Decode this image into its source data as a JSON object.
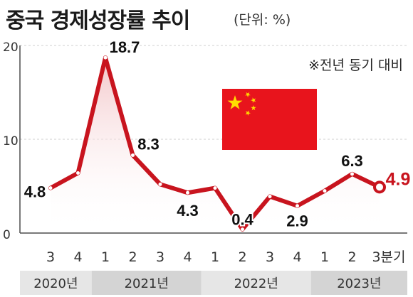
{
  "header": {
    "title": "중국 경제성장률 추이",
    "unit": "(단위: %)"
  },
  "note": "※전년 동기 대비",
  "colors": {
    "line": "#c8141e",
    "fill_top": "#f3c6c9",
    "flag_red": "#e8141c",
    "flag_star": "#ffde00",
    "highlight": "#c8141e",
    "band_light": "#e6e6e6",
    "band_dark": "#d4d4d4",
    "axis": "#4d4d4d",
    "grid": "#cfcfcf"
  },
  "flag_icon": "china-flag",
  "chart_data": {
    "type": "area",
    "title": "중국 경제성장률 추이",
    "ylabel": "",
    "xlabel": "",
    "ylim": [
      0,
      20
    ],
    "yticks": [
      0,
      10,
      20
    ],
    "grid": "y-major dashed",
    "categories": [
      "3",
      "4",
      "1",
      "2",
      "3",
      "4",
      "1",
      "2",
      "3",
      "4",
      "1",
      "2",
      "3분기"
    ],
    "year_groups": [
      {
        "label": "2020년",
        "span": 2
      },
      {
        "label": "2021년",
        "span": 4
      },
      {
        "label": "2022년",
        "span": 4
      },
      {
        "label": "2023년",
        "span": 3
      }
    ],
    "series": [
      {
        "values": [
          4.8,
          6.4,
          18.7,
          8.3,
          5.2,
          4.3,
          4.8,
          0.4,
          3.9,
          2.9,
          4.5,
          6.3,
          4.9
        ]
      }
    ],
    "data_labels": [
      {
        "index": 0,
        "text": "4.8"
      },
      {
        "index": 2,
        "text": "18.7"
      },
      {
        "index": 3,
        "text": "8.3"
      },
      {
        "index": 5,
        "text": "4.3"
      },
      {
        "index": 7,
        "text": "0.4"
      },
      {
        "index": 9,
        "text": "2.9"
      },
      {
        "index": 11,
        "text": "6.3"
      },
      {
        "index": 12,
        "text": "4.9",
        "highlight": true
      }
    ]
  }
}
